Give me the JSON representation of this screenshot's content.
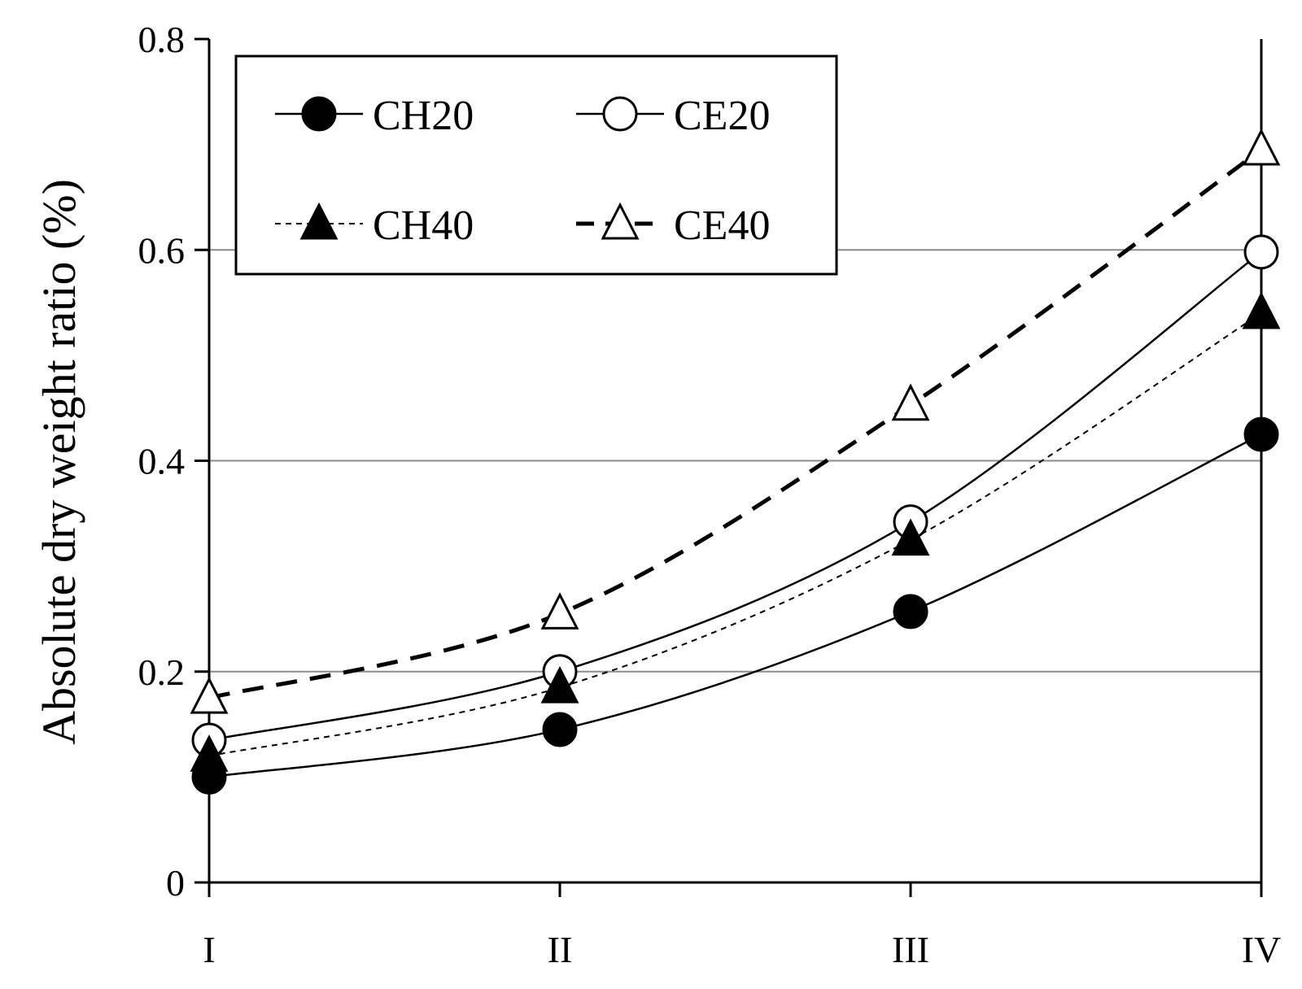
{
  "chart_data": {
    "type": "line",
    "title": "",
    "xlabel": "",
    "ylabel": "Absolute dry weight ratio (%)",
    "categories": [
      "I",
      "II",
      "III",
      "IV"
    ],
    "ylim": [
      0,
      0.8
    ],
    "yticks": [
      "0",
      "0.2",
      "0.4",
      "0.6",
      "0.8"
    ],
    "grid": "horizontal",
    "legend_position": "top-left",
    "series": [
      {
        "name": "CH20",
        "values": [
          0.1,
          0.145,
          0.257,
          0.425
        ],
        "marker": "filled-circle",
        "line": "solid"
      },
      {
        "name": "CE20",
        "values": [
          0.135,
          0.2,
          0.342,
          0.598
        ],
        "marker": "open-circle",
        "line": "solid"
      },
      {
        "name": "CH40",
        "values": [
          0.12,
          0.185,
          0.325,
          0.54
        ],
        "marker": "filled-triangle",
        "line": "dotted"
      },
      {
        "name": "CE40",
        "values": [
          0.175,
          0.255,
          0.453,
          0.695
        ],
        "marker": "open-triangle",
        "line": "dashed"
      }
    ]
  }
}
